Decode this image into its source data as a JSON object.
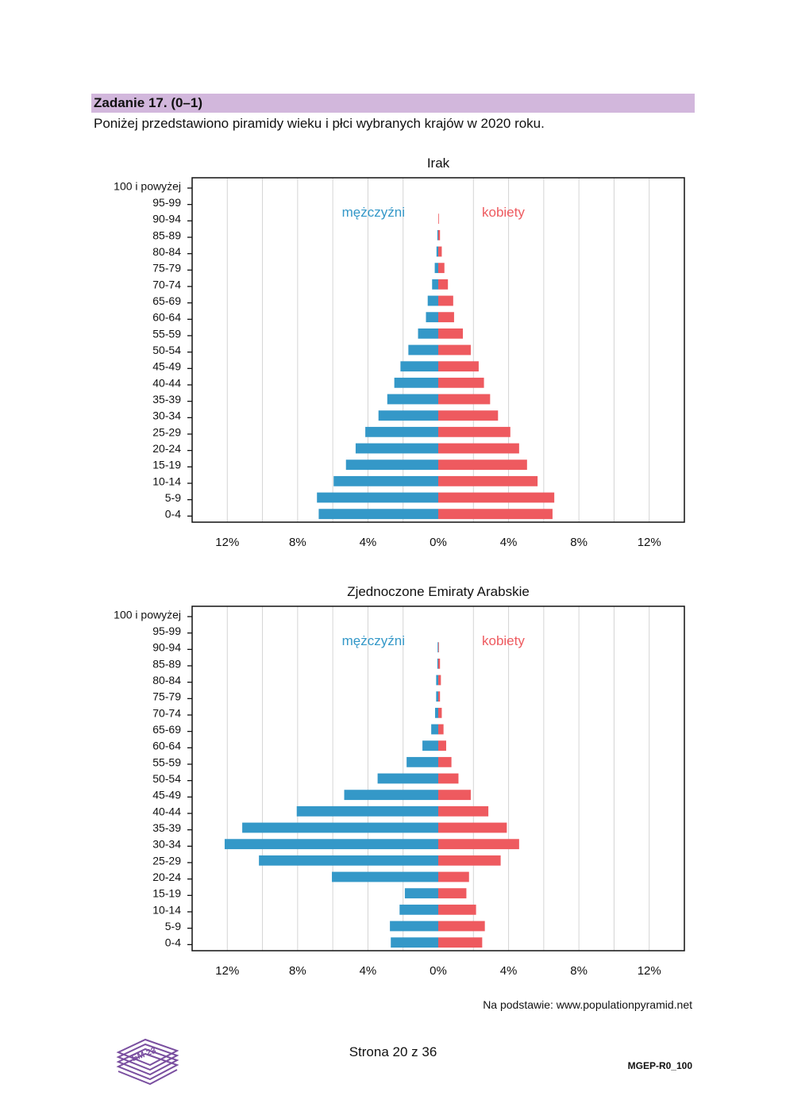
{
  "header": {
    "task_title": "Zadanie 17. (0–1)",
    "intro": "Poniżej przedstawiono piramidy wieku i płci wybranych krajów w 2020 roku."
  },
  "colors": {
    "male": "#3498c8",
    "female": "#ee5a5f",
    "grid": "#d4d4d4",
    "header_bg": "#d2b7dc"
  },
  "chart_data": [
    {
      "type": "bar",
      "title": "Irak",
      "legend_male": "mężczyźni",
      "legend_female": "kobiety",
      "categories": [
        "100 i powyżej",
        "95-99",
        "90-94",
        "85-89",
        "80-84",
        "75-79",
        "70-74",
        "65-69",
        "60-64",
        "55-59",
        "50-54",
        "45-49",
        "40-44",
        "35-39",
        "30-34",
        "25-29",
        "20-24",
        "15-19",
        "10-14",
        "5-9",
        "0-4"
      ],
      "series": [
        {
          "name": "mężczyźni",
          "values": [
            0,
            0,
            0,
            0.05,
            0.1,
            0.2,
            0.35,
            0.6,
            0.7,
            1.15,
            1.7,
            2.15,
            2.5,
            2.9,
            3.4,
            4.15,
            4.7,
            5.25,
            5.95,
            6.9,
            6.8
          ]
        },
        {
          "name": "kobiety",
          "values": [
            0,
            0,
            0.02,
            0.1,
            0.2,
            0.35,
            0.55,
            0.85,
            0.9,
            1.4,
            1.85,
            2.3,
            2.6,
            2.95,
            3.4,
            4.1,
            4.6,
            5.05,
            5.65,
            6.6,
            6.5
          ]
        }
      ],
      "xlim": [
        -14,
        14
      ],
      "xticks": [
        "12%",
        "8%",
        "4%",
        "0%",
        "4%",
        "8%",
        "12%"
      ]
    },
    {
      "type": "bar",
      "title": "Zjednoczone Emiraty Arabskie",
      "legend_male": "mężczyźni",
      "legend_female": "kobiety",
      "categories": [
        "100 i powyżej",
        "95-99",
        "90-94",
        "85-89",
        "80-84",
        "75-79",
        "70-74",
        "65-69",
        "60-64",
        "55-59",
        "50-54",
        "45-49",
        "40-44",
        "35-39",
        "30-34",
        "25-29",
        "20-24",
        "15-19",
        "10-14",
        "5-9",
        "0-4"
      ],
      "series": [
        {
          "name": "mężczyźni",
          "values": [
            0,
            0,
            0.02,
            0.05,
            0.12,
            0.12,
            0.18,
            0.4,
            0.9,
            1.8,
            3.45,
            5.35,
            8.05,
            11.15,
            12.15,
            10.2,
            6.05,
            1.9,
            2.2,
            2.75,
            2.7
          ]
        },
        {
          "name": "kobiety",
          "values": [
            0,
            0,
            0.02,
            0.1,
            0.15,
            0.1,
            0.2,
            0.3,
            0.45,
            0.75,
            1.15,
            1.85,
            2.85,
            3.9,
            4.6,
            3.55,
            1.75,
            1.6,
            2.15,
            2.65,
            2.5
          ]
        }
      ],
      "xlim": [
        -14,
        14
      ],
      "xticks": [
        "12%",
        "8%",
        "4%",
        "0%",
        "4%",
        "8%",
        "12%"
      ]
    }
  ],
  "footer": {
    "source": "Na podstawie: www.populationpyramid.net",
    "page_number": "Strona 20 z 36",
    "doc_code": "MGEP-R0_100",
    "logo_text": "EM 23"
  }
}
